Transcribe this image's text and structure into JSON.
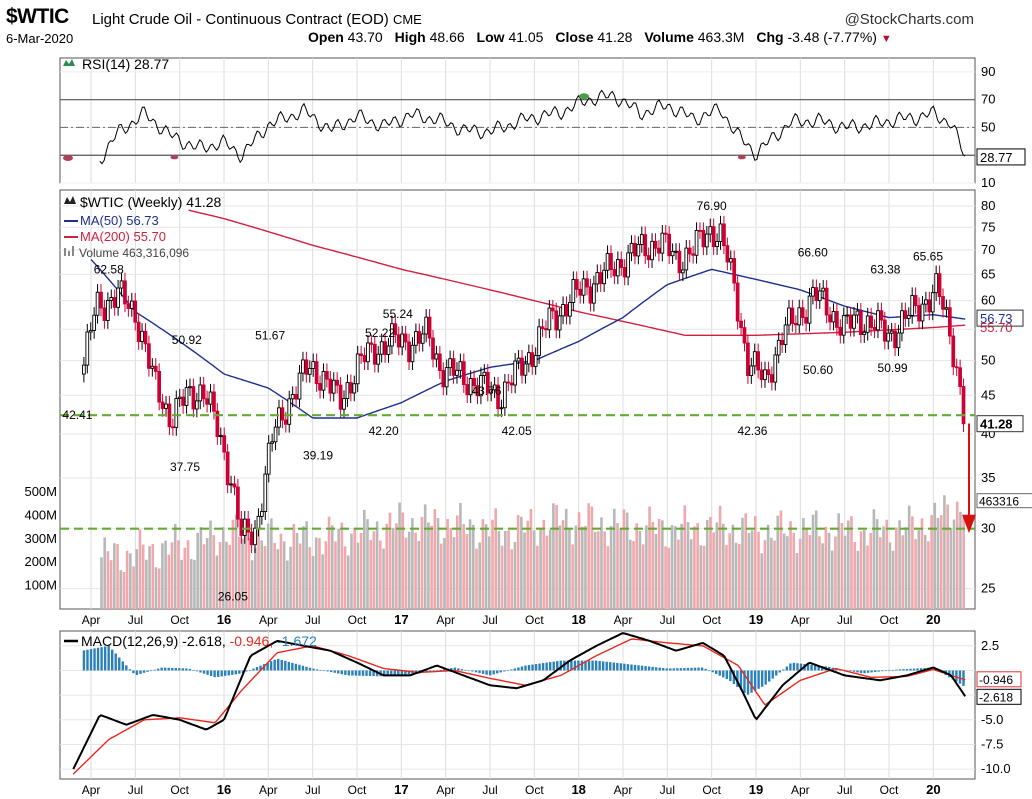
{
  "header": {
    "symbol": "$WTIC",
    "name": "Light Crude Oil - Continuous Contract (EOD)",
    "exchange": "CME",
    "brand": "@StockCharts.com",
    "date": "6-Mar-2020",
    "open_label": "Open",
    "open": "43.70",
    "high_label": "High",
    "high": "48.66",
    "low_label": "Low",
    "low": "41.05",
    "close_label": "Close",
    "close": "41.28",
    "volume_label": "Volume",
    "volume": "463.3M",
    "chg_label": "Chg",
    "chg": "-3.48 (-7.77%)",
    "chg_arrow": "▼"
  },
  "colors": {
    "price_up": "#000000",
    "price_down": "#cc0033",
    "ma50": "#1f2f8f",
    "ma200": "#d02040",
    "volume_up": "#b8b8b8",
    "volume_down": "#f0a8ac",
    "guide": "#66aa33",
    "macd_hist": "#2a80b9",
    "signal": "#e8281e"
  },
  "chart_data": [
    {
      "type": "line",
      "name": "rsi_panel",
      "legend": "RSI(14) 28.77",
      "yticks": [
        10,
        30,
        50,
        70,
        90
      ],
      "ylim": [
        10,
        100
      ],
      "reference_lines": [
        30,
        50,
        70
      ],
      "last_value_label": "28.77",
      "series": [
        {
          "name": "RSI(14)",
          "x": [
            2015.3,
            2015.4,
            2015.55,
            2015.7,
            2015.85,
            2016.0,
            2016.1,
            2016.25,
            2016.45,
            2016.6,
            2016.75,
            2016.9,
            2017.05,
            2017.2,
            2017.35,
            2017.5,
            2017.7,
            2017.9,
            2018.05,
            2018.2,
            2018.35,
            2018.5,
            2018.65,
            2018.8,
            2018.9,
            2019.0,
            2019.1,
            2019.2,
            2019.35,
            2019.5,
            2019.65,
            2019.8,
            2019.9,
            2020.0,
            2020.1,
            2020.18
          ],
          "values": [
            27,
            46,
            60,
            44,
            35,
            39,
            30,
            52,
            62,
            48,
            58,
            51,
            59,
            56,
            48,
            47,
            56,
            61,
            70,
            73,
            60,
            66,
            56,
            63,
            44,
            31,
            43,
            54,
            55,
            50,
            52,
            56,
            57,
            60,
            53,
            28.77
          ]
        }
      ]
    },
    {
      "type": "candlestick",
      "name": "price_panel",
      "legend": "$WTIC (Weekly) 41.28",
      "legend_ma50": "MA(50) 56.73",
      "legend_ma200": "MA(200) 55.70",
      "legend_volume": "Volume 463,316,096",
      "yticks": [
        25,
        30,
        35,
        40,
        45,
        50,
        55,
        60,
        65,
        70,
        75,
        80
      ],
      "volume_ticks": [
        "100M",
        "200M",
        "300M",
        "400M",
        "500M"
      ],
      "x_labels": [
        "Apr",
        "Jul",
        "Oct",
        "16",
        "Apr",
        "Jul",
        "Oct",
        "17",
        "Apr",
        "Jul",
        "Oct",
        "18",
        "Apr",
        "Jul",
        "Oct",
        "19",
        "Apr",
        "Jul",
        "Oct",
        "20"
      ],
      "annotations": [
        "42.41",
        "62.58",
        "50.92",
        "37.75",
        "26.05",
        "51.67",
        "39.19",
        "52.22",
        "55.24",
        "42.20",
        "43.76",
        "42.05",
        "76.90",
        "42.36",
        "66.60",
        "50.60",
        "63.38",
        "50.99",
        "65.65"
      ],
      "guide_levels": [
        42.36,
        30
      ],
      "last_price_label": "41.28",
      "ma50_label": "56.73",
      "ma200_label": "55.70",
      "volume_label": "463316",
      "close_series": {
        "x": [
          2015.2,
          2015.28,
          2015.4,
          2015.5,
          2015.6,
          2015.7,
          2015.8,
          2015.88,
          2015.97,
          2016.04,
          2016.1,
          2016.18,
          2016.28,
          2016.38,
          2016.48,
          2016.55,
          2016.65,
          2016.75,
          2016.85,
          2016.95,
          2017.05,
          2017.15,
          2017.22,
          2017.3,
          2017.4,
          2017.47,
          2017.55,
          2017.65,
          2017.75,
          2017.85,
          2017.95,
          2018.05,
          2018.15,
          2018.25,
          2018.35,
          2018.45,
          2018.55,
          2018.65,
          2018.75,
          2018.8,
          2018.88,
          2018.95,
          2019.05,
          2019.15,
          2019.25,
          2019.33,
          2019.4,
          2019.5,
          2019.58,
          2019.65,
          2019.75,
          2019.85,
          2019.95,
          2020.02,
          2020.1,
          2020.18
        ],
        "values": [
          48,
          59,
          61,
          58,
          47,
          42,
          45,
          46,
          40,
          35,
          29,
          30,
          40,
          45,
          49,
          48,
          44,
          49,
          52,
          53,
          53,
          54,
          49,
          48,
          47,
          46,
          45,
          48,
          52,
          57,
          60,
          63,
          65,
          68,
          70,
          72,
          68,
          70,
          75,
          73,
          62,
          50,
          47,
          54,
          58,
          61,
          59,
          55,
          57,
          56,
          54,
          57,
          60,
          62,
          54,
          41.28
        ]
      },
      "ma50_series": {
        "x": [
          2015.25,
          2015.5,
          2015.75,
          2016.0,
          2016.25,
          2016.5,
          2016.75,
          2017.0,
          2017.25,
          2017.5,
          2017.75,
          2018.0,
          2018.25,
          2018.5,
          2018.75,
          2019.0,
          2019.25,
          2019.5,
          2019.75,
          2020.0,
          2020.18
        ],
        "values": [
          68,
          58,
          53,
          48,
          46,
          42,
          42,
          44,
          47,
          49,
          50,
          53,
          57,
          63,
          66,
          64,
          62,
          59,
          57,
          57.5,
          56.73
        ]
      },
      "ma200_series": {
        "x": [
          2015.8,
          2016.0,
          2016.5,
          2017.0,
          2017.5,
          2018.0,
          2018.3,
          2018.6,
          2019.0,
          2019.5,
          2020.0,
          2020.18
        ],
        "values": [
          79,
          77,
          71,
          66,
          62,
          58,
          56,
          54,
          54,
          54.5,
          55.3,
          55.7
        ]
      },
      "volume_series": {
        "x": [
          2015.3,
          2015.6,
          2015.9,
          2016.0,
          2016.2,
          2016.5,
          2016.8,
          2017.0,
          2017.3,
          2017.6,
          2017.9,
          2018.2,
          2018.5,
          2018.8,
          2019.0,
          2019.3,
          2019.6,
          2019.9,
          2020.1,
          2020.18
        ],
        "values": [
          220,
          250,
          290,
          330,
          300,
          300,
          330,
          370,
          360,
          330,
          380,
          360,
          340,
          350,
          330,
          340,
          330,
          350,
          420,
          463
        ]
      }
    },
    {
      "type": "line",
      "name": "macd_panel",
      "legend_name": "MACD(12,26,9)",
      "legend_values": [
        "-2.618",
        "-0.946",
        "-1.672"
      ],
      "yticks": [
        "2.5",
        "0.0",
        "-2.5",
        "-5.0",
        "-7.5",
        "-10.0"
      ],
      "ylim": [
        -11,
        4
      ],
      "last_signal_label": "-0.946",
      "last_macd_label": "-2.618",
      "x_labels": [
        "Apr",
        "Jul",
        "Oct",
        "16",
        "Apr",
        "Jul",
        "Oct",
        "17",
        "Apr",
        "Jul",
        "Oct",
        "18",
        "Apr",
        "Jul",
        "Oct",
        "19",
        "Apr",
        "Jul",
        "Oct",
        "20"
      ],
      "series": [
        {
          "name": "MACD",
          "x": [
            2015.15,
            2015.3,
            2015.45,
            2015.6,
            2015.75,
            2015.9,
            2016.0,
            2016.15,
            2016.3,
            2016.45,
            2016.6,
            2016.75,
            2016.9,
            2017.05,
            2017.2,
            2017.35,
            2017.5,
            2017.65,
            2017.8,
            2017.95,
            2018.1,
            2018.25,
            2018.4,
            2018.55,
            2018.7,
            2018.82,
            2018.92,
            2019.0,
            2019.15,
            2019.3,
            2019.5,
            2019.7,
            2019.85,
            2020.0,
            2020.1,
            2020.18
          ],
          "values": [
            -10,
            -4.5,
            -5.5,
            -4.5,
            -5.0,
            -6.0,
            -5.0,
            1.5,
            3.0,
            2.5,
            2.0,
            0.8,
            -0.5,
            -0.5,
            0.5,
            -0.5,
            -1.5,
            -1.8,
            -1.0,
            1.0,
            2.5,
            3.8,
            3.0,
            2.0,
            2.8,
            1.5,
            -2.0,
            -5.0,
            -1.5,
            0.8,
            -0.5,
            -1.0,
            -0.5,
            0.3,
            -0.5,
            -2.618
          ]
        },
        {
          "name": "Signal",
          "x": [
            2015.15,
            2015.35,
            2015.55,
            2015.75,
            2015.95,
            2016.1,
            2016.3,
            2016.5,
            2016.7,
            2016.9,
            2017.1,
            2017.3,
            2017.5,
            2017.7,
            2017.9,
            2018.1,
            2018.3,
            2018.5,
            2018.7,
            2018.9,
            2019.05,
            2019.25,
            2019.45,
            2019.65,
            2019.85,
            2020.0,
            2020.1,
            2020.18
          ],
          "values": [
            -10.5,
            -7.0,
            -5.0,
            -4.8,
            -5.3,
            -2.0,
            1.8,
            2.5,
            1.5,
            0.2,
            -0.2,
            0.0,
            -0.8,
            -1.5,
            -0.5,
            1.5,
            3.2,
            2.8,
            2.5,
            0.5,
            -3.5,
            -1.0,
            0.2,
            -0.7,
            -0.6,
            0.1,
            -0.5,
            -0.946
          ]
        },
        {
          "name": "Histogram",
          "x": [
            2015.2,
            2015.35,
            2015.5,
            2015.65,
            2015.8,
            2015.95,
            2016.1,
            2016.3,
            2016.5,
            2016.7,
            2016.9,
            2017.1,
            2017.3,
            2017.5,
            2017.7,
            2017.9,
            2018.1,
            2018.3,
            2018.5,
            2018.7,
            2018.85,
            2018.95,
            2019.05,
            2019.2,
            2019.4,
            2019.6,
            2019.8,
            2020.0,
            2020.1,
            2020.18
          ],
          "values": [
            2.0,
            2.5,
            -0.5,
            0.3,
            0.2,
            -0.7,
            -0.3,
            1.2,
            0.2,
            -0.5,
            -0.6,
            -0.3,
            0.3,
            -0.5,
            0.5,
            1.0,
            1.0,
            0.6,
            0.2,
            0.3,
            -1.0,
            -2.5,
            -1.5,
            0.8,
            0.4,
            -0.3,
            0.1,
            0.3,
            -0.8,
            -1.672
          ]
        }
      ]
    }
  ]
}
